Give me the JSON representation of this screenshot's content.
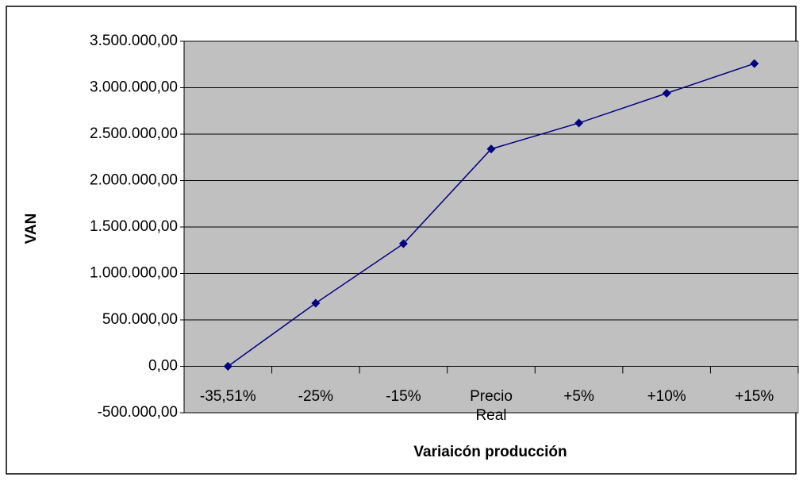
{
  "chart_data": {
    "type": "line",
    "x_label": "Variaicón producción",
    "y_label": "VAN",
    "categories": [
      "-35,51%",
      "-25%",
      "-15%",
      "Precio Real",
      "+5%",
      "+10%",
      "+15%"
    ],
    "series": [
      {
        "name": "VAN",
        "color": "#000080",
        "values": [
          0,
          680000,
          1320000,
          2340000,
          2620000,
          2940000,
          3260000
        ]
      }
    ],
    "ylim": [
      -500000,
      3500000
    ],
    "yticks": [
      {
        "value": -500000,
        "label": "-500.000,00"
      },
      {
        "value": 0,
        "label": "0,00"
      },
      {
        "value": 500000,
        "label": "500.000,00"
      },
      {
        "value": 1000000,
        "label": "1.000.000,00"
      },
      {
        "value": 1500000,
        "label": "1.500.000,00"
      },
      {
        "value": 2000000,
        "label": "2.000.000,00"
      },
      {
        "value": 2500000,
        "label": "2.500.000,00"
      },
      {
        "value": 3000000,
        "label": "3.000.000,00"
      },
      {
        "value": 3500000,
        "label": "3.500.000,00"
      }
    ],
    "grid": true
  }
}
